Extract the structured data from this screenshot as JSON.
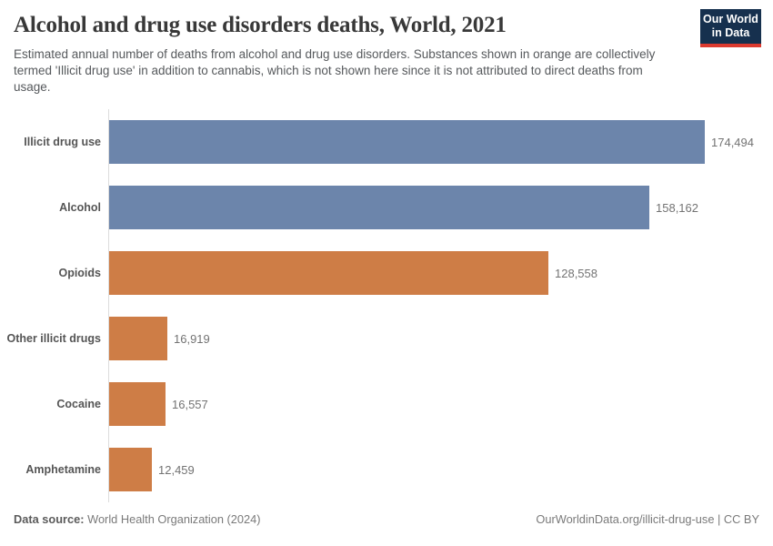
{
  "header": {
    "title": "Alcohol and drug use disorders deaths, World, 2021",
    "subtitle": "Estimated annual number of deaths from alcohol and drug use disorders. Substances shown in orange are collectively termed 'Illicit drug use' in addition to cannabis, which is not shown here since it is not attributed to direct deaths from usage.",
    "logo": {
      "line1": "Our World",
      "line2": "in Data",
      "background_color": "#16304e",
      "accent_color": "#dc3a2f"
    }
  },
  "chart_data": {
    "type": "bar",
    "orientation": "horizontal",
    "title": "Alcohol and drug use disorders deaths, World, 2021",
    "categories": [
      "Illicit drug use",
      "Alcohol",
      "Opioids",
      "Other illicit drugs",
      "Cocaine",
      "Amphetamine"
    ],
    "values": [
      174494,
      158162,
      128558,
      16919,
      16557,
      12459
    ],
    "value_labels": [
      "174,494",
      "158,162",
      "128,558",
      "16,919",
      "16,557",
      "12,459"
    ],
    "bar_colors": [
      "#6c85ab",
      "#6c85ab",
      "#ce7d46",
      "#ce7d46",
      "#ce7d46",
      "#ce7d46"
    ],
    "color_meaning": {
      "blue": "#6c85ab",
      "orange": "#ce7d46"
    },
    "xlim": [
      0,
      190000
    ],
    "grid": false,
    "legend": "none",
    "axis_line_color": "#dcdcdc"
  },
  "footer": {
    "data_source_label": "Data source:",
    "data_source_value": "World Health Organization (2024)",
    "attribution": "OurWorldinData.org/illicit-drug-use | CC BY"
  }
}
